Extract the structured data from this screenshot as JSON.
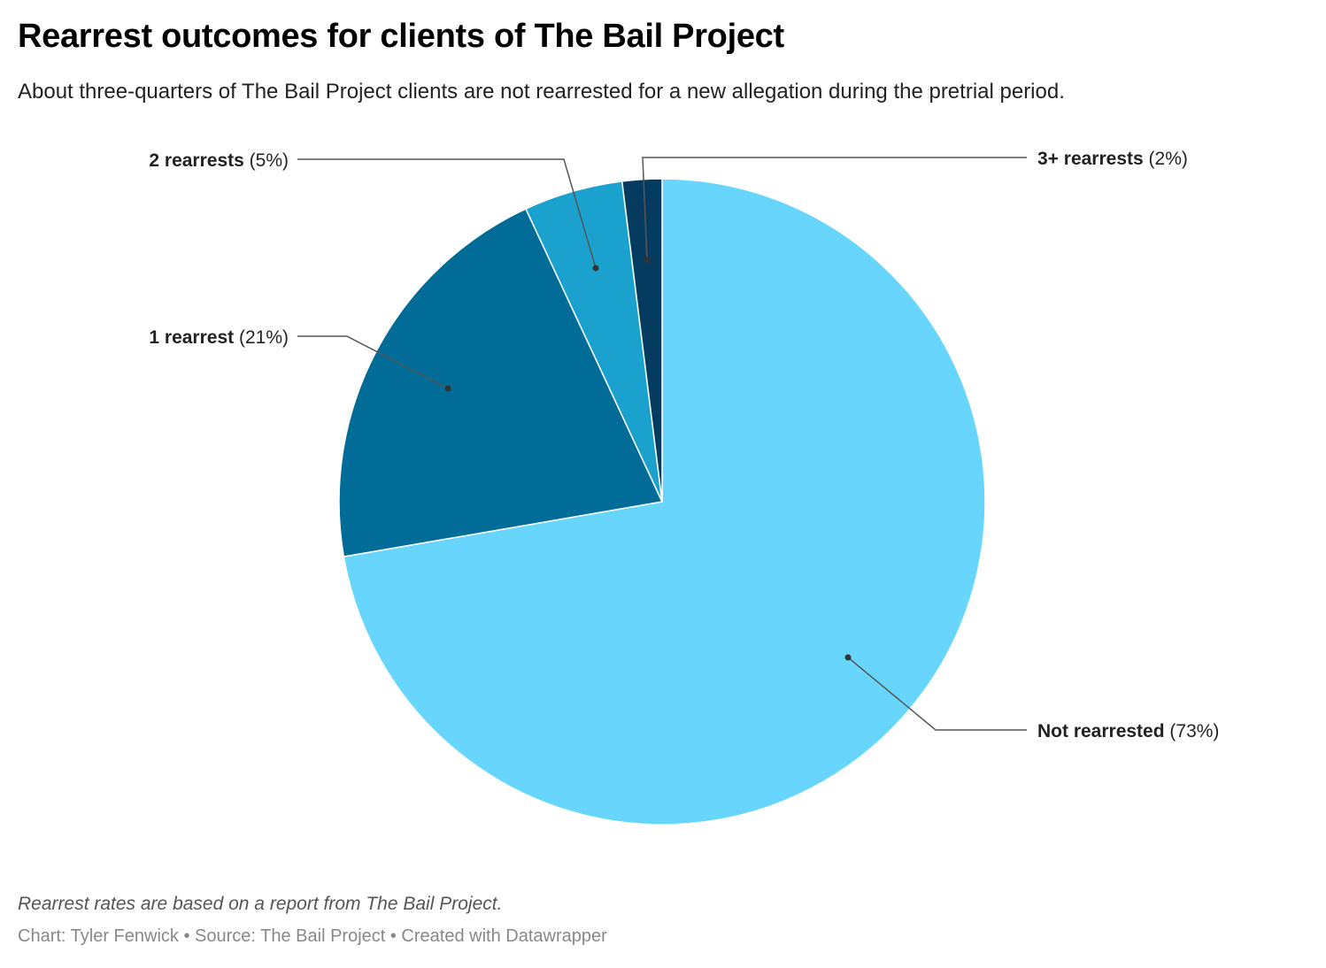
{
  "header": {
    "title": "Rearrest outcomes for clients of The Bail Project",
    "subtitle": "About three-quarters of The Bail Project clients are not rearrested for a new allegation during the pretrial period."
  },
  "footer": {
    "notes": "Rearrest rates are based on a report from The Bail Project.",
    "byline": "Chart: Tyler Fenwick • Source: The Bail Project • Created with Datawrapper"
  },
  "chart_data": {
    "type": "pie",
    "title": "Rearrest outcomes for clients of The Bail Project",
    "slices": [
      {
        "label": "Not rearrested",
        "value": 73,
        "value_label": "(73%)",
        "color": "#68d6fc"
      },
      {
        "label": "1 rearrest",
        "value": 21,
        "value_label": "(21%)",
        "color": "#006c97"
      },
      {
        "label": "2 rearrests",
        "value": 5,
        "value_label": "(5%)",
        "color": "#1aa1ce"
      },
      {
        "label": "3+ rearrests",
        "value": 2,
        "value_label": "(2%)",
        "color": "#043b5f"
      }
    ],
    "start": "top",
    "direction": "clockwise",
    "legend": "none (direct labels with leader lines)"
  }
}
